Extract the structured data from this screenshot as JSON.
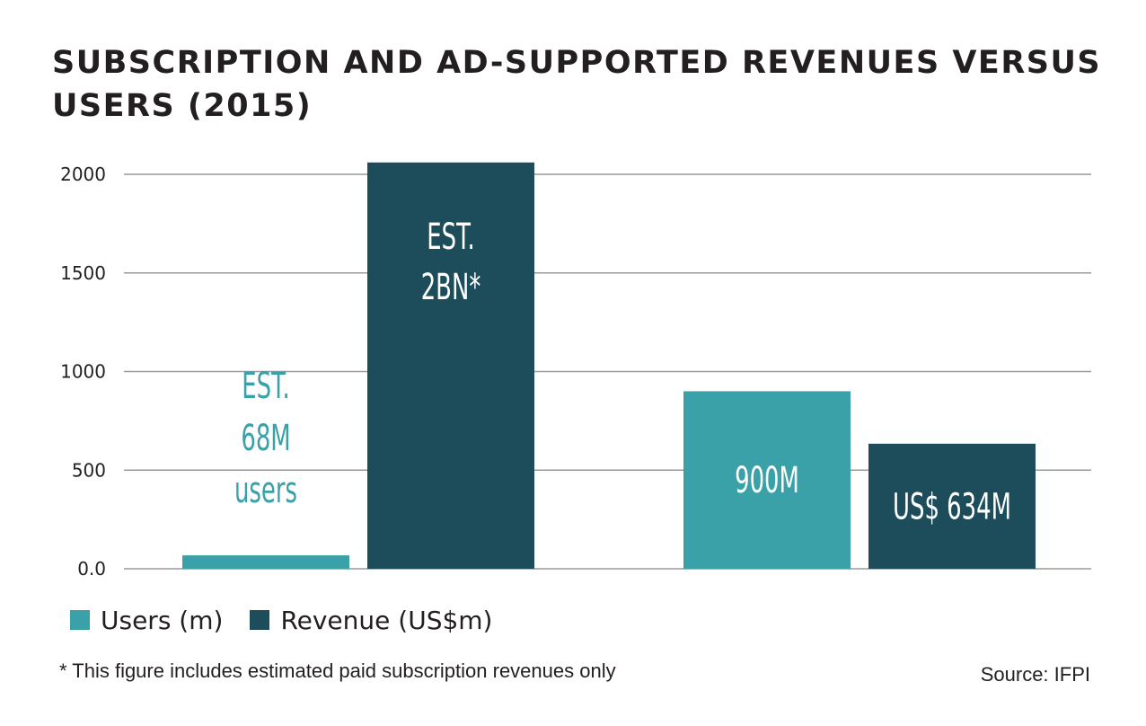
{
  "chart_data": {
    "type": "bar",
    "title": "SUBSCRIPTION AND AD-SUPPORTED REVENUES VERSUS USERS (2015)",
    "y_ticks": [
      "0.0",
      "500",
      "1000",
      "1500",
      "2000"
    ],
    "ylim": [
      0,
      2000
    ],
    "grid": true,
    "legend_position": "bottom-left",
    "groups": [
      {
        "bars": [
          {
            "series": "Users (m)",
            "value": 68,
            "label_lines": [
              "EST.",
              "68M",
              "users"
            ]
          },
          {
            "series": "Revenue (US$m)",
            "value": 2060,
            "label_lines": [
              "EST.",
              "2BN*"
            ]
          }
        ]
      },
      {
        "bars": [
          {
            "series": "Users (m)",
            "value": 900,
            "label_lines": [
              "900M"
            ]
          },
          {
            "series": "Revenue (US$m)",
            "value": 634,
            "label_lines": [
              "US$ 634M"
            ]
          }
        ]
      }
    ],
    "series": [
      {
        "name": "Users (m)",
        "color": "#3aa1a8",
        "values": [
          68,
          900
        ]
      },
      {
        "name": "Revenue (US$m)",
        "color": "#1d4d5b",
        "values": [
          2060,
          634
        ]
      }
    ],
    "footnote": "* This figure includes estimated paid subscription revenues only",
    "source": "Source: IFPI"
  },
  "colors": {
    "users": "#3aa1a8",
    "revenue": "#1d4d5b",
    "grid": "#9a9a9a",
    "text": "#231f20",
    "label_on_dark": "#ffffff",
    "label_light_teal": "#3aa1a8"
  }
}
